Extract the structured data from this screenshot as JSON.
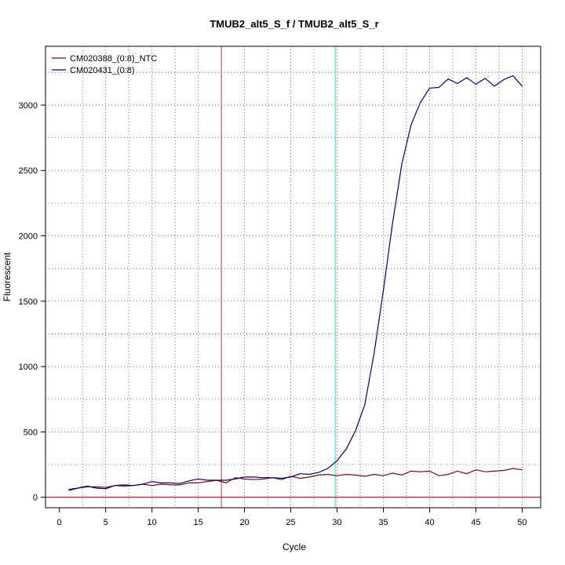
{
  "chart_data": {
    "type": "line",
    "title": "TMUB2_alt5_S_f / TMUB2_alt5_S_r",
    "xlabel": "Cycle",
    "ylabel": "Fluorescent",
    "xlim": [
      -1.5,
      52
    ],
    "ylim": [
      -80,
      3450
    ],
    "x_ticks": [
      0,
      5,
      10,
      15,
      20,
      25,
      30,
      35,
      40,
      45,
      50
    ],
    "y_ticks": [
      0,
      500,
      1000,
      1500,
      2000,
      2500,
      3000
    ],
    "grid": true,
    "legend_position": "top-left",
    "vlines": [
      {
        "x": 17.5,
        "color": "#cc3333"
      },
      {
        "x": 29.8,
        "color": "#33dddd"
      }
    ],
    "hline": {
      "y": 0,
      "color": "#cc0000"
    },
    "x": [
      1,
      2,
      3,
      4,
      5,
      6,
      7,
      8,
      9,
      10,
      11,
      12,
      13,
      14,
      15,
      16,
      17,
      18,
      19,
      20,
      21,
      22,
      23,
      24,
      25,
      26,
      27,
      28,
      29,
      30,
      31,
      32,
      33,
      34,
      35,
      36,
      37,
      38,
      39,
      40,
      41,
      42,
      43,
      44,
      45,
      46,
      47,
      48,
      49,
      50
    ],
    "series": [
      {
        "name": "CM020388_(0:8)_NTC",
        "color": "#8b0000",
        "values": [
          50,
          70,
          80,
          80,
          75,
          90,
          85,
          90,
          100,
          90,
          100,
          95,
          95,
          110,
          110,
          120,
          130,
          110,
          150,
          140,
          135,
          140,
          150,
          135,
          160,
          145,
          155,
          170,
          175,
          165,
          175,
          170,
          160,
          175,
          165,
          185,
          170,
          200,
          195,
          200,
          165,
          175,
          200,
          180,
          210,
          195,
          200,
          205,
          220,
          210
        ]
      },
      {
        "name": "CM020431_(0:8)",
        "color": "#00008b",
        "values": [
          60,
          70,
          85,
          70,
          65,
          90,
          95,
          90,
          100,
          120,
          110,
          110,
          105,
          125,
          140,
          130,
          130,
          130,
          140,
          155,
          155,
          150,
          150,
          145,
          155,
          180,
          175,
          190,
          220,
          280,
          370,
          510,
          710,
          1100,
          1580,
          2100,
          2550,
          2850,
          3020,
          3130,
          3135,
          3200,
          3165,
          3210,
          3160,
          3205,
          3145,
          3195,
          3225,
          3145
        ]
      }
    ]
  }
}
